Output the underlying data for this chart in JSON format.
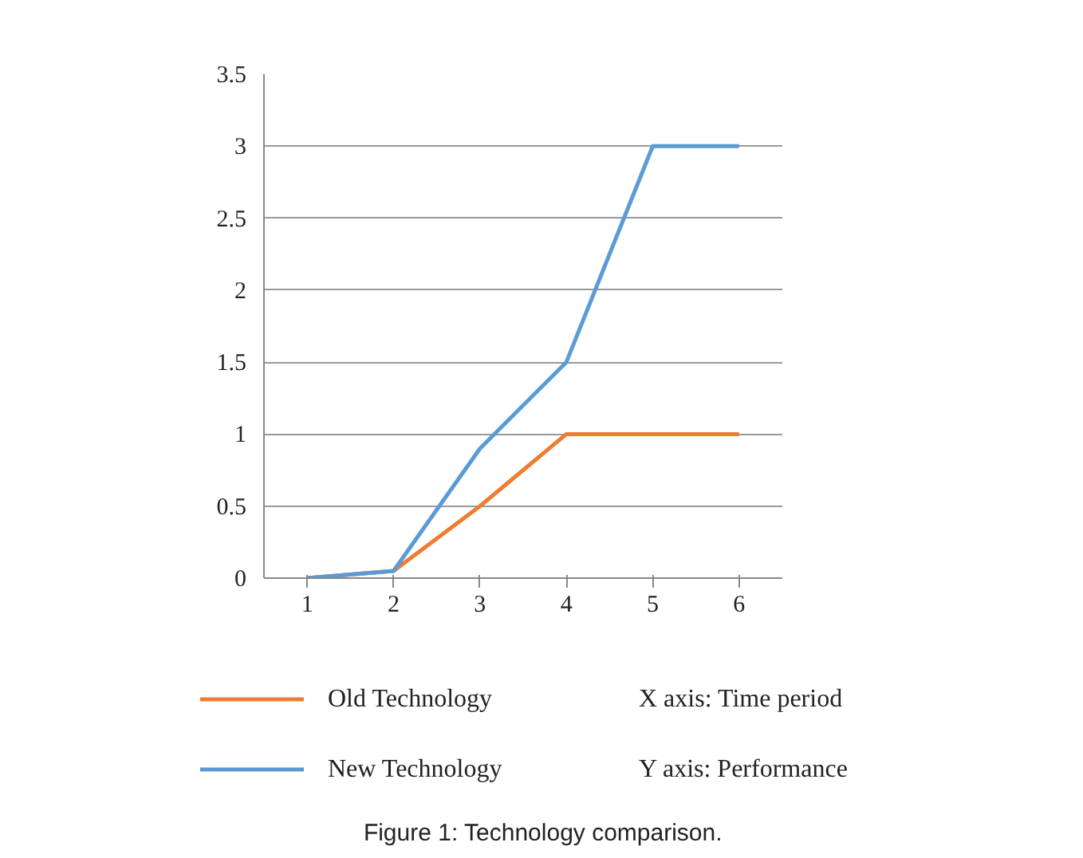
{
  "chart_data": {
    "type": "line",
    "categories": [
      "1",
      "2",
      "3",
      "4",
      "5",
      "6"
    ],
    "series": [
      {
        "name": "Old Technology",
        "color": "#ed7d31",
        "values": [
          0,
          0.05,
          0.5,
          1,
          1,
          1
        ]
      },
      {
        "name": "New Technology",
        "color": "#5b9bd5",
        "values": [
          0,
          0.05,
          0.9,
          1.5,
          3,
          3
        ]
      }
    ],
    "ylim": [
      0,
      3.5
    ],
    "yticks": [
      0,
      0.5,
      1,
      1.5,
      2,
      2.5,
      3,
      3.5
    ],
    "grid": "y",
    "legend": "bottom",
    "annotations": [
      "X axis: Time period",
      "Y axis: Performance",
      "Figure 1: Technology comparison."
    ]
  }
}
